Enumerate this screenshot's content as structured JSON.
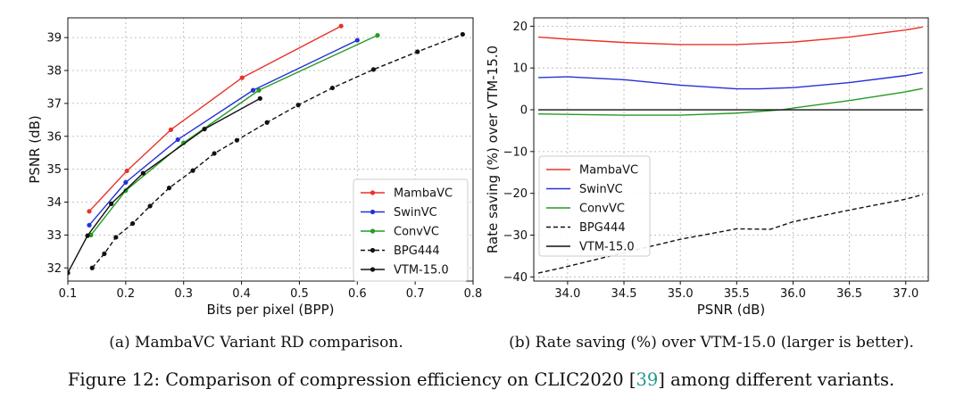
{
  "chart_data": [
    {
      "type": "line",
      "title": "",
      "caption": "(a) MambaVC Variant RD comparison.",
      "xlabel": "Bits per pixel (BPP)",
      "ylabel": "PSNR (dB)",
      "xlim": [
        0.1,
        0.8
      ],
      "ylim": [
        31.6,
        39.6
      ],
      "xticks": [
        0.1,
        0.2,
        0.3,
        0.4,
        0.5,
        0.6,
        0.7,
        0.8
      ],
      "xtick_labels": [
        "0.1",
        "0.2",
        "0.3",
        "0.4",
        "0.5",
        "0.6",
        "0.7",
        "0.8"
      ],
      "yticks": [
        32,
        33,
        34,
        35,
        36,
        37,
        38,
        39
      ],
      "ytick_labels": [
        "32",
        "33",
        "34",
        "35",
        "36",
        "37",
        "38",
        "39"
      ],
      "grid": true,
      "legend_position": "bottom-right",
      "series": [
        {
          "name": "MambaVC",
          "color": "#e8332a",
          "dash": "solid",
          "markers": true,
          "x": [
            0.137,
            0.202,
            0.278,
            0.401,
            0.572
          ],
          "y": [
            33.72,
            34.95,
            36.2,
            37.78,
            39.35
          ]
        },
        {
          "name": "SwinVC",
          "color": "#2431d6",
          "dash": "solid",
          "markers": true,
          "x": [
            0.137,
            0.2,
            0.29,
            0.42,
            0.6
          ],
          "y": [
            33.3,
            34.6,
            35.9,
            37.4,
            38.92
          ]
        },
        {
          "name": "ConvVC",
          "color": "#249a24",
          "dash": "solid",
          "markers": true,
          "x": [
            0.14,
            0.2,
            0.3,
            0.43,
            0.635
          ],
          "y": [
            33.0,
            34.35,
            35.8,
            37.4,
            39.07
          ]
        },
        {
          "name": "BPG444",
          "color": "#111111",
          "dash": "dashed",
          "markers": true,
          "x": [
            0.142,
            0.163,
            0.183,
            0.212,
            0.242,
            0.275,
            0.316,
            0.353,
            0.392,
            0.444,
            0.498,
            0.557,
            0.628,
            0.704,
            0.782
          ],
          "y": [
            32.0,
            32.43,
            32.93,
            33.35,
            33.88,
            34.43,
            34.96,
            35.48,
            35.88,
            36.42,
            36.95,
            37.47,
            38.03,
            38.57,
            39.1
          ]
        },
        {
          "name": "VTM-15.0",
          "color": "#111111",
          "dash": "solid",
          "markers": true,
          "x": [
            0.1,
            0.134,
            0.175,
            0.23,
            0.336,
            0.432
          ],
          "y": [
            31.85,
            32.98,
            33.95,
            34.88,
            36.22,
            37.15
          ]
        }
      ]
    },
    {
      "type": "line",
      "title": "",
      "caption": "(b) Rate saving (%) over VTM-15.0 (larger is better).",
      "xlabel": "PSNR (dB)",
      "ylabel": "Rate saving (%) over VTM-15.0",
      "xlim": [
        33.7,
        37.2
      ],
      "ylim": [
        -41,
        22
      ],
      "xticks": [
        34.0,
        34.5,
        35.0,
        35.5,
        36.0,
        36.5,
        37.0
      ],
      "xtick_labels": [
        "34.0",
        "34.5",
        "35.0",
        "35.5",
        "36.0",
        "36.5",
        "37.0"
      ],
      "yticks": [
        -40,
        -30,
        -20,
        -10,
        0,
        10,
        20
      ],
      "ytick_labels": [
        "−40",
        "−30",
        "−20",
        "−10",
        "0",
        "10",
        "20"
      ],
      "grid": true,
      "legend_position": "center-left",
      "series": [
        {
          "name": "MambaVC",
          "color": "#e8332a",
          "dash": "solid",
          "markers": false,
          "x": [
            33.74,
            34.0,
            34.5,
            35.0,
            35.5,
            36.0,
            36.5,
            37.0,
            37.15
          ],
          "y": [
            17.4,
            16.9,
            16.1,
            15.6,
            15.6,
            16.2,
            17.4,
            19.1,
            19.8
          ]
        },
        {
          "name": "SwinVC",
          "color": "#2431d6",
          "dash": "solid",
          "markers": false,
          "x": [
            33.74,
            34.0,
            34.5,
            35.0,
            35.5,
            35.7,
            36.0,
            36.5,
            37.0,
            37.15
          ],
          "y": [
            7.7,
            7.9,
            7.2,
            5.9,
            5.0,
            5.0,
            5.3,
            6.5,
            8.2,
            8.9
          ]
        },
        {
          "name": "ConvVC",
          "color": "#249a24",
          "dash": "solid",
          "markers": false,
          "x": [
            33.74,
            34.0,
            34.5,
            35.0,
            35.5,
            35.9,
            36.0,
            36.5,
            37.0,
            37.15
          ],
          "y": [
            -1.0,
            -1.1,
            -1.3,
            -1.3,
            -0.8,
            0.0,
            0.4,
            2.2,
            4.3,
            5.1
          ]
        },
        {
          "name": "BPG444",
          "color": "#111111",
          "dash": "dashed",
          "markers": false,
          "x": [
            33.74,
            34.0,
            34.5,
            35.0,
            35.5,
            35.8,
            36.0,
            36.5,
            37.0,
            37.15
          ],
          "y": [
            -39.1,
            -37.5,
            -34.2,
            -31.0,
            -28.5,
            -28.6,
            -26.8,
            -24.0,
            -21.4,
            -20.3
          ]
        },
        {
          "name": "VTM-15.0",
          "color": "#111111",
          "dash": "solid",
          "markers": false,
          "x": [
            33.74,
            37.15
          ],
          "y": [
            0.0,
            0.0
          ]
        }
      ]
    }
  ],
  "figure_caption": {
    "prefix": "Figure 12: Comparison of compression efficiency on CLIC2020 [",
    "citation": "39",
    "suffix": "] among different variants."
  }
}
